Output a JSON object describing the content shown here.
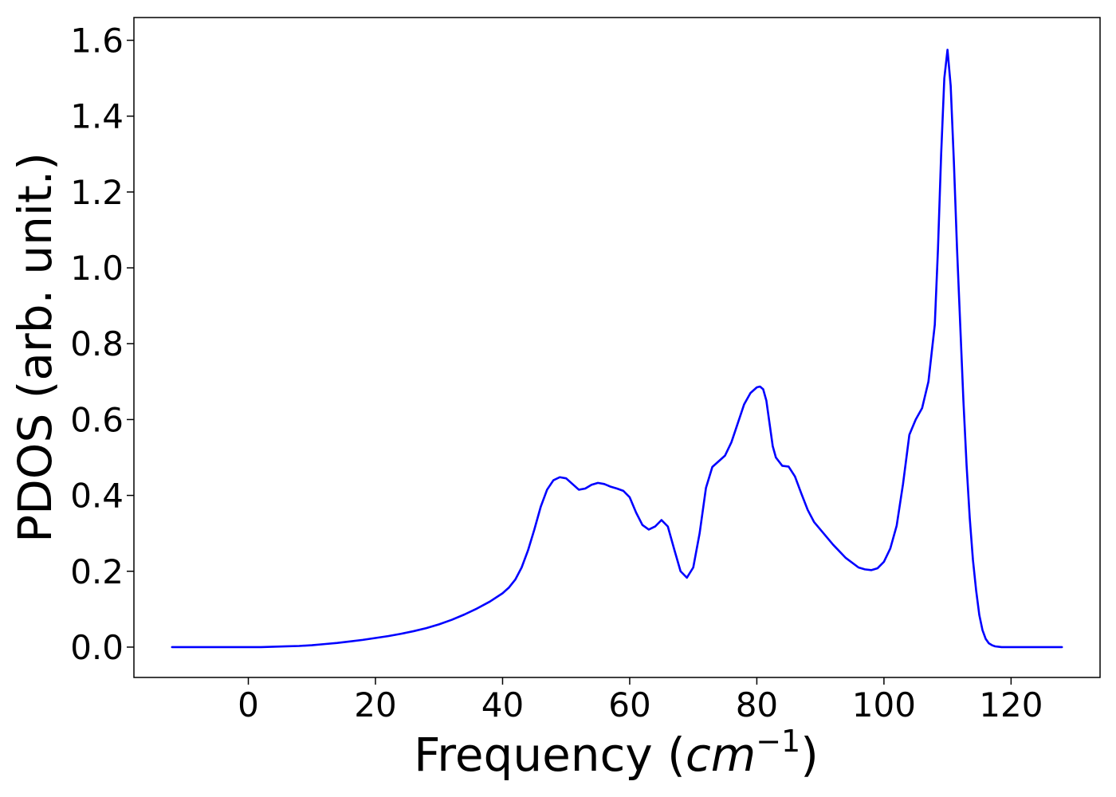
{
  "chart_data": {
    "type": "line",
    "title": "",
    "xlabel_text": "Frequency (",
    "xlabel_math_base": "cm",
    "xlabel_math_sup": "−1",
    "xlabel_close": ")",
    "ylabel": "PDOS (arb. unit.)",
    "xlim": [
      -18,
      134
    ],
    "ylim": [
      -0.08,
      1.66
    ],
    "xticks": [
      0,
      20,
      40,
      60,
      80,
      100,
      120
    ],
    "xtick_labels": [
      "0",
      "20",
      "40",
      "60",
      "80",
      "100",
      "120"
    ],
    "yticks": [
      0.0,
      0.2,
      0.4,
      0.6,
      0.8,
      1.0,
      1.2,
      1.4,
      1.6
    ],
    "ytick_labels": [
      "0.0",
      "0.2",
      "0.4",
      "0.6",
      "0.8",
      "1.0",
      "1.2",
      "1.4",
      "1.6"
    ],
    "grid": false,
    "series": [
      {
        "color": "#0000ff",
        "x": [
          -12,
          -8,
          -4,
          0,
          2,
          4,
          6,
          8,
          10,
          12,
          14,
          16,
          18,
          20,
          22,
          24,
          26,
          28,
          30,
          32,
          34,
          36,
          38,
          40,
          41,
          42,
          43,
          44,
          45,
          46,
          47,
          48,
          49,
          50,
          51,
          52,
          53,
          54,
          55,
          56,
          57,
          58,
          59,
          60,
          61,
          62,
          63,
          64,
          65,
          66,
          67,
          68,
          69,
          70,
          71,
          72,
          73,
          74,
          75,
          76,
          77,
          78,
          79,
          80,
          80.5,
          81,
          81.5,
          82,
          82.5,
          83,
          84,
          85,
          86,
          87,
          88,
          89,
          90,
          92,
          94,
          96,
          97,
          98,
          99,
          100,
          101,
          102,
          103,
          104,
          105,
          106,
          107,
          108,
          108.5,
          109,
          109.5,
          110,
          110.5,
          111,
          111.5,
          112,
          112.5,
          113,
          113.5,
          114,
          114.5,
          115,
          115.5,
          116,
          116.5,
          117,
          117.5,
          118,
          118.5,
          119,
          120,
          122,
          124,
          126,
          128
        ],
        "y": [
          0.0,
          0.0,
          0.0,
          0.0,
          0.0,
          0.001,
          0.002,
          0.003,
          0.005,
          0.008,
          0.011,
          0.015,
          0.019,
          0.024,
          0.029,
          0.035,
          0.042,
          0.05,
          0.06,
          0.072,
          0.086,
          0.102,
          0.12,
          0.142,
          0.157,
          0.178,
          0.21,
          0.255,
          0.31,
          0.37,
          0.415,
          0.44,
          0.448,
          0.445,
          0.43,
          0.415,
          0.418,
          0.428,
          0.433,
          0.43,
          0.423,
          0.418,
          0.412,
          0.395,
          0.355,
          0.322,
          0.31,
          0.318,
          0.335,
          0.318,
          0.258,
          0.2,
          0.183,
          0.21,
          0.3,
          0.42,
          0.475,
          0.49,
          0.505,
          0.54,
          0.59,
          0.64,
          0.67,
          0.685,
          0.687,
          0.68,
          0.65,
          0.59,
          0.53,
          0.5,
          0.478,
          0.476,
          0.45,
          0.405,
          0.362,
          0.33,
          0.31,
          0.27,
          0.235,
          0.21,
          0.205,
          0.203,
          0.208,
          0.225,
          0.26,
          0.32,
          0.43,
          0.56,
          0.6,
          0.63,
          0.7,
          0.85,
          1.05,
          1.3,
          1.5,
          1.575,
          1.48,
          1.28,
          1.05,
          0.85,
          0.65,
          0.48,
          0.34,
          0.23,
          0.15,
          0.085,
          0.045,
          0.022,
          0.01,
          0.005,
          0.002,
          0.001,
          0.0,
          0.0,
          0.0,
          0.0,
          0.0,
          0.0,
          0.0
        ]
      }
    ]
  }
}
